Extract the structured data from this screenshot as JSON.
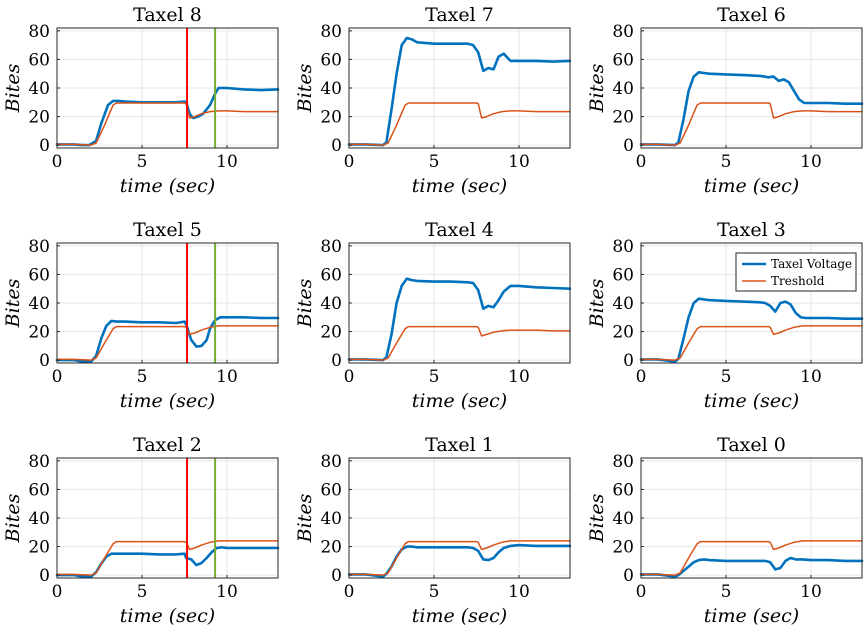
{
  "chart_data": {
    "type": "line",
    "layout": "3x3 grid of subplots",
    "xlabel": "time (sec)",
    "ylabel": "Bites",
    "xlim": [
      0,
      13
    ],
    "ylim": [
      -2,
      82
    ],
    "xticks": [
      0,
      5,
      10
    ],
    "yticks": [
      0,
      20,
      40,
      60,
      80
    ],
    "grid": true,
    "legend": {
      "panel": "Taxel 3",
      "placement": "top-right",
      "entries": [
        "Taxel Voltage",
        "Treshold"
      ]
    },
    "series_colors": {
      "Taxel Voltage": "#0072BD",
      "Treshold": "#D95319"
    },
    "marker_lines": [
      {
        "x": 7.65,
        "color": "#ff0000",
        "panels": [
          "Taxel 8",
          "Taxel 5",
          "Taxel 2"
        ]
      },
      {
        "x": 9.3,
        "color": "#77AC30",
        "panels": [
          "Taxel 8",
          "Taxel 5",
          "Taxel 2"
        ]
      }
    ],
    "panels": [
      {
        "title": "Taxel 8",
        "series": [
          {
            "name": "Taxel Voltage",
            "x": [
              0,
              1,
              1.5,
              1.9,
              2.3,
              2.6,
              3.0,
              3.3,
              3.6,
              4,
              5,
              6,
              7,
              7.5,
              7.6,
              7.8,
              8.0,
              8.3,
              8.6,
              9.0,
              9.3,
              9.5,
              10,
              11,
              12,
              13
            ],
            "y": [
              0.5,
              0.5,
              0,
              0,
              3,
              15,
              28,
              31,
              31,
              30.5,
              30,
              30,
              30,
              30.5,
              30,
              22,
              19,
              20,
              22,
              28,
              36,
              40,
              40,
              39,
              38.5,
              39
            ]
          },
          {
            "name": "Treshold",
            "x": [
              0,
              1,
              2,
              2.3,
              2.8,
              3.3,
              3.5,
              4,
              5,
              6,
              7,
              7.5,
              7.6,
              7.8,
              8.1,
              8.5,
              9,
              9.5,
              10,
              11,
              12,
              13
            ],
            "y": [
              0.5,
              0.5,
              0,
              1.5,
              14,
              28,
              29.5,
              29.5,
              29.5,
              29.5,
              29.5,
              29.5,
              29,
              19,
              20,
              22,
              23.5,
              24,
              24,
              23.5,
              23.5,
              23.5
            ]
          }
        ]
      },
      {
        "title": "Taxel 7",
        "series": [
          {
            "name": "Taxel Voltage",
            "x": [
              0,
              1,
              2,
              2.2,
              2.5,
              2.8,
              3.1,
              3.4,
              3.7,
              4,
              5,
              6,
              7,
              7.3,
              7.6,
              7.9,
              8.2,
              8.5,
              8.8,
              9.1,
              9.5,
              10,
              11,
              12,
              13
            ],
            "y": [
              0.5,
              0.5,
              0,
              2,
              25,
              50,
              70,
              75,
              74,
              72,
              71,
              71,
              71,
              70,
              65,
              52,
              54,
              53,
              62,
              64,
              59,
              59,
              59,
              58.5,
              59
            ]
          },
          {
            "name": "Treshold",
            "x": [
              0,
              1,
              2,
              2.3,
              2.8,
              3.3,
              3.5,
              4,
              5,
              6,
              7,
              7.5,
              7.6,
              7.8,
              8.1,
              8.5,
              9,
              9.5,
              10,
              11,
              12,
              13
            ],
            "y": [
              0.5,
              0.5,
              0,
              1.5,
              14,
              28,
              29.5,
              29.5,
              29.5,
              29.5,
              29.5,
              29.5,
              29,
              19,
              20,
              22,
              23.5,
              24,
              24,
              23.5,
              23.5,
              23.5
            ]
          }
        ]
      },
      {
        "title": "Taxel 6",
        "series": [
          {
            "name": "Taxel Voltage",
            "x": [
              0,
              1,
              2,
              2.2,
              2.5,
              2.8,
              3.1,
              3.4,
              3.7,
              4,
              5,
              6,
              7,
              7.5,
              7.8,
              8.1,
              8.4,
              8.7,
              9.0,
              9.3,
              9.6,
              10,
              11,
              12,
              13
            ],
            "y": [
              0.5,
              0.5,
              0,
              2,
              18,
              38,
              48,
              51,
              50.5,
              50,
              49.5,
              49,
              48.5,
              47.5,
              48,
              45,
              46,
              44,
              38,
              32,
              29.5,
              29.5,
              29.5,
              29,
              29
            ]
          },
          {
            "name": "Treshold",
            "x": [
              0,
              1,
              2,
              2.3,
              2.8,
              3.3,
              3.5,
              4,
              5,
              6,
              7,
              7.5,
              7.6,
              7.8,
              8.1,
              8.5,
              9,
              9.5,
              10,
              11,
              12,
              13
            ],
            "y": [
              0.5,
              0.5,
              0,
              1.5,
              14,
              28,
              29.5,
              29.5,
              29.5,
              29.5,
              29.5,
              29.5,
              29,
              19,
              20,
              22,
              23.5,
              24,
              24,
              23.5,
              23.5,
              23.5
            ]
          }
        ]
      },
      {
        "title": "Taxel 5",
        "series": [
          {
            "name": "Taxel Voltage",
            "x": [
              0,
              1,
              1.5,
              2,
              2.3,
              2.6,
              2.9,
              3.2,
              3.5,
              4,
              5,
              6,
              7,
              7.5,
              7.6,
              7.9,
              8.2,
              8.5,
              8.8,
              9.0,
              9.3,
              9.6,
              10,
              11,
              12,
              13
            ],
            "y": [
              0,
              0,
              -1,
              -1,
              3,
              15,
              24,
              27.5,
              27,
              27,
              26.5,
              26.5,
              26,
              27,
              25,
              14,
              9.5,
              10,
              14,
              22,
              28,
              30,
              30,
              30,
              29.5,
              29.5
            ]
          },
          {
            "name": "Treshold",
            "x": [
              0,
              1,
              2,
              2.3,
              2.8,
              3.3,
              3.5,
              4,
              5,
              6,
              7,
              7.5,
              7.6,
              7.8,
              8.1,
              8.5,
              9,
              9.5,
              10,
              11,
              12,
              13
            ],
            "y": [
              0.5,
              0.5,
              0,
              1.5,
              12,
              22,
              23.5,
              23.5,
              23.5,
              23.5,
              23.5,
              23.5,
              23,
              18,
              19,
              21,
              23,
              24,
              24,
              24,
              24,
              24
            ]
          }
        ]
      },
      {
        "title": "Taxel 4",
        "series": [
          {
            "name": "Taxel Voltage",
            "x": [
              0,
              1,
              2,
              2.2,
              2.5,
              2.8,
              3.1,
              3.4,
              3.7,
              4,
              5,
              6,
              7,
              7.3,
              7.6,
              7.9,
              8.2,
              8.5,
              8.8,
              9.1,
              9.5,
              10,
              11,
              12,
              13
            ],
            "y": [
              0.5,
              0.5,
              0,
              2,
              18,
              40,
              52,
              57,
              56,
              55.5,
              55,
              55,
              54.5,
              54,
              49,
              36,
              38,
              37,
              42,
              48,
              52,
              52,
              51,
              50.5,
              50
            ]
          },
          {
            "name": "Treshold",
            "x": [
              0,
              1,
              2,
              2.3,
              2.8,
              3.3,
              3.5,
              4,
              5,
              6,
              7,
              7.5,
              7.6,
              7.8,
              8.1,
              8.5,
              9,
              9.5,
              10,
              11,
              12,
              13
            ],
            "y": [
              0.5,
              0.5,
              0,
              1.5,
              12,
              22,
              23.5,
              23.5,
              23.5,
              23.5,
              23.5,
              23.5,
              23,
              17,
              18,
              19.5,
              20.5,
              21,
              21,
              21,
              20.5,
              20.5
            ]
          }
        ]
      },
      {
        "title": "Taxel 3",
        "series": [
          {
            "name": "Taxel Voltage",
            "x": [
              0,
              1,
              2,
              2.2,
              2.5,
              2.8,
              3.1,
              3.4,
              3.7,
              4,
              5,
              6,
              7,
              7.3,
              7.6,
              7.9,
              8.2,
              8.5,
              8.8,
              9.1,
              9.4,
              9.7,
              10,
              11,
              12,
              13
            ],
            "y": [
              0.5,
              0.5,
              -1,
              1,
              15,
              30,
              40,
              43,
              42.5,
              42,
              41.5,
              41,
              40.5,
              40,
              38,
              34,
              40,
              41,
              39,
              33,
              30,
              29.5,
              29.5,
              29.5,
              29,
              29
            ]
          },
          {
            "name": "Treshold",
            "x": [
              0,
              1,
              2,
              2.3,
              2.8,
              3.3,
              3.5,
              4,
              5,
              6,
              7,
              7.5,
              7.6,
              7.8,
              8.1,
              8.5,
              9,
              9.5,
              10,
              11,
              12,
              13
            ],
            "y": [
              0.5,
              0.5,
              0,
              1.5,
              12,
              22,
              23.5,
              23.5,
              23.5,
              23.5,
              23.5,
              23.5,
              23,
              18,
              19,
              21,
              23,
              24,
              24,
              24,
              24,
              24
            ]
          }
        ]
      },
      {
        "title": "Taxel 2",
        "series": [
          {
            "name": "Taxel Voltage",
            "x": [
              0,
              1,
              1.5,
              2,
              2.3,
              2.6,
              2.9,
              3.2,
              3.5,
              4,
              5,
              6,
              7,
              7.5,
              7.6,
              7.9,
              8.2,
              8.5,
              8.8,
              9.1,
              9.4,
              9.7,
              10,
              11,
              12,
              13
            ],
            "y": [
              0,
              0,
              -1,
              -1,
              2,
              8,
              13,
              15,
              15,
              15,
              15,
              14.5,
              14.5,
              15,
              12,
              11,
              7,
              8.5,
              12,
              16,
              19,
              19.5,
              19,
              19,
              19,
              19
            ]
          },
          {
            "name": "Treshold",
            "x": [
              0,
              1,
              2,
              2.3,
              2.8,
              3.3,
              3.5,
              4,
              5,
              6,
              7,
              7.5,
              7.6,
              7.8,
              8.1,
              8.5,
              9,
              9.5,
              10,
              11,
              12,
              13
            ],
            "y": [
              0.5,
              0.5,
              0,
              1.5,
              12,
              22,
              23.5,
              23.5,
              23.5,
              23.5,
              23.5,
              23.5,
              23,
              18,
              19,
              21,
              23,
              24,
              24,
              24,
              24,
              24
            ]
          }
        ]
      },
      {
        "title": "Taxel 1",
        "series": [
          {
            "name": "Taxel Voltage",
            "x": [
              0,
              1,
              2,
              2.2,
              2.5,
              2.8,
              3.1,
              3.4,
              3.7,
              4,
              5,
              6,
              7,
              7.3,
              7.6,
              7.9,
              8.2,
              8.5,
              8.8,
              9.1,
              9.5,
              10,
              11,
              12,
              13
            ],
            "y": [
              0.5,
              0.5,
              -1,
              1,
              6,
              13,
              18,
              20,
              20,
              19.5,
              19.5,
              19.5,
              19.5,
              19,
              17,
              11,
              10.5,
              12,
              16,
              19,
              20.5,
              21,
              20.5,
              20.5,
              20.5
            ]
          },
          {
            "name": "Treshold",
            "x": [
              0,
              1,
              2,
              2.3,
              2.8,
              3.3,
              3.5,
              4,
              5,
              6,
              7,
              7.5,
              7.6,
              7.8,
              8.1,
              8.5,
              9,
              9.5,
              10,
              11,
              12,
              13
            ],
            "y": [
              0.5,
              0.5,
              0,
              1.5,
              12,
              22,
              23.5,
              23.5,
              23.5,
              23.5,
              23.5,
              23.5,
              23,
              18,
              19,
              21,
              23,
              24,
              24,
              24,
              24,
              24
            ]
          }
        ]
      },
      {
        "title": "Taxel 0",
        "series": [
          {
            "name": "Taxel Voltage",
            "x": [
              0,
              1,
              2,
              2.2,
              2.5,
              2.8,
              3.1,
              3.4,
              3.7,
              4,
              5,
              6,
              7,
              7.3,
              7.6,
              7.9,
              8.2,
              8.5,
              8.8,
              9.1,
              9.5,
              10,
              11,
              12,
              13
            ],
            "y": [
              0.5,
              0.5,
              -1,
              0,
              3,
              6,
              9,
              10.5,
              11,
              10.5,
              10,
              10,
              10,
              10,
              9,
              4,
              5,
              10,
              12,
              11,
              11,
              10.5,
              10.5,
              10,
              10
            ]
          },
          {
            "name": "Treshold",
            "x": [
              0,
              1,
              2,
              2.3,
              2.8,
              3.3,
              3.5,
              4,
              5,
              6,
              7,
              7.5,
              7.6,
              7.8,
              8.1,
              8.5,
              9,
              9.5,
              10,
              11,
              12,
              13
            ],
            "y": [
              0.5,
              0.5,
              0,
              1.5,
              12,
              22,
              23.5,
              23.5,
              23.5,
              23.5,
              23.5,
              23.5,
              23,
              18,
              19,
              21,
              23,
              24,
              24,
              24,
              24,
              24
            ]
          }
        ]
      }
    ]
  }
}
